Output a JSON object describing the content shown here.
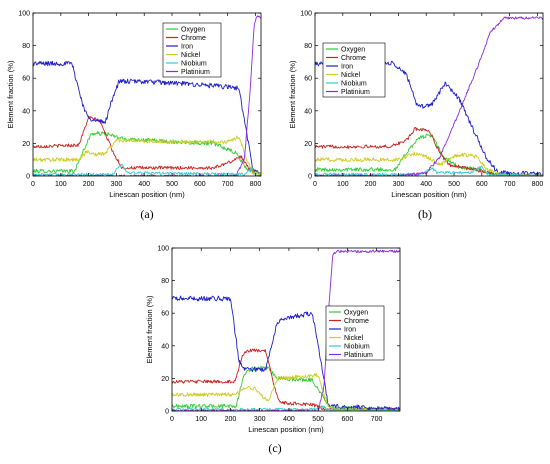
{
  "chart_data": [
    {
      "type": "line",
      "panel_label": "(a)",
      "xlabel": "Linescan position (nm)",
      "ylabel": "Element fraction (%)",
      "xlim": [
        0,
        820
      ],
      "ylim": [
        0,
        100
      ],
      "xticks": [
        0,
        100,
        200,
        300,
        400,
        500,
        600,
        700,
        800
      ],
      "yticks": [
        0,
        20,
        40,
        60,
        80,
        100
      ],
      "legend_position": "top-right",
      "series": [
        {
          "name": "Oxygen",
          "color": "#33cc33",
          "noise": 1.2,
          "points": [
            [
              0,
              3
            ],
            [
              150,
              3
            ],
            [
              185,
              17
            ],
            [
              210,
              26
            ],
            [
              260,
              26
            ],
            [
              320,
              23
            ],
            [
              500,
              21
            ],
            [
              650,
              20
            ],
            [
              730,
              14
            ],
            [
              770,
              4
            ],
            [
              820,
              1
            ]
          ]
        },
        {
          "name": "Chrome",
          "color": "#cc2222",
          "noise": 1.0,
          "points": [
            [
              0,
              18
            ],
            [
              165,
              19
            ],
            [
              200,
              36
            ],
            [
              240,
              34
            ],
            [
              290,
              14
            ],
            [
              320,
              5
            ],
            [
              650,
              5
            ],
            [
              700,
              8
            ],
            [
              750,
              12
            ],
            [
              780,
              4
            ],
            [
              820,
              1
            ]
          ]
        },
        {
          "name": "Iron",
          "color": "#1f1fcc",
          "noise": 1.5,
          "points": [
            [
              0,
              69
            ],
            [
              140,
              69
            ],
            [
              185,
              40
            ],
            [
              215,
              34
            ],
            [
              260,
              33
            ],
            [
              290,
              50
            ],
            [
              310,
              58
            ],
            [
              400,
              58
            ],
            [
              600,
              56
            ],
            [
              740,
              54
            ],
            [
              770,
              25
            ],
            [
              790,
              4
            ],
            [
              820,
              1
            ]
          ]
        },
        {
          "name": "Nickel",
          "color": "#cccc22",
          "noise": 1.2,
          "points": [
            [
              0,
              10
            ],
            [
              160,
              10
            ],
            [
              195,
              15
            ],
            [
              225,
              13
            ],
            [
              260,
              14
            ],
            [
              300,
              22
            ],
            [
              500,
              21
            ],
            [
              700,
              21
            ],
            [
              740,
              24
            ],
            [
              770,
              10
            ],
            [
              790,
              2
            ],
            [
              820,
              1
            ]
          ]
        },
        {
          "name": "Niobium",
          "color": "#33cccc",
          "noise": 0.8,
          "points": [
            [
              0,
              1
            ],
            [
              290,
              1
            ],
            [
              300,
              4
            ],
            [
              320,
              7
            ],
            [
              340,
              2
            ],
            [
              760,
              1
            ],
            [
              790,
              5
            ],
            [
              800,
              0
            ],
            [
              820,
              0
            ]
          ]
        },
        {
          "name": "Platinium",
          "color": "#8a2be2",
          "noise": 0.8,
          "points": [
            [
              0,
              0
            ],
            [
              730,
              0
            ],
            [
              760,
              10
            ],
            [
              780,
              50
            ],
            [
              795,
              92
            ],
            [
              805,
              98
            ],
            [
              820,
              97
            ]
          ]
        }
      ]
    },
    {
      "type": "line",
      "panel_label": "(b)",
      "xlabel": "Linescan position (nm)",
      "ylabel": "Element fraction (%)",
      "xlim": [
        0,
        820
      ],
      "ylim": [
        0,
        100
      ],
      "xticks": [
        0,
        100,
        200,
        300,
        400,
        500,
        600,
        700,
        800
      ],
      "yticks": [
        0,
        20,
        40,
        60,
        80,
        100
      ],
      "legend_position": "left-middle",
      "series": [
        {
          "name": "Oxygen",
          "color": "#33cc33",
          "noise": 1.2,
          "points": [
            [
              0,
              4
            ],
            [
              290,
              4
            ],
            [
              340,
              17
            ],
            [
              380,
              24
            ],
            [
              420,
              25
            ],
            [
              460,
              12
            ],
            [
              520,
              5
            ],
            [
              600,
              4
            ],
            [
              640,
              1
            ],
            [
              820,
              0
            ]
          ]
        },
        {
          "name": "Chrome",
          "color": "#cc2222",
          "noise": 1.0,
          "points": [
            [
              0,
              18
            ],
            [
              270,
              18
            ],
            [
              330,
              22
            ],
            [
              360,
              29
            ],
            [
              410,
              28
            ],
            [
              450,
              14
            ],
            [
              480,
              7
            ],
            [
              600,
              3
            ],
            [
              650,
              1
            ],
            [
              820,
              0
            ]
          ]
        },
        {
          "name": "Iron",
          "color": "#1f1fcc",
          "noise": 1.5,
          "points": [
            [
              0,
              69
            ],
            [
              280,
              69
            ],
            [
              330,
              62
            ],
            [
              370,
              42
            ],
            [
              420,
              44
            ],
            [
              470,
              57
            ],
            [
              520,
              47
            ],
            [
              570,
              28
            ],
            [
              620,
              10
            ],
            [
              660,
              2
            ],
            [
              820,
              1
            ]
          ]
        },
        {
          "name": "Nickel",
          "color": "#cccc22",
          "noise": 1.2,
          "points": [
            [
              0,
              10
            ],
            [
              300,
              10
            ],
            [
              360,
              14
            ],
            [
              410,
              11
            ],
            [
              450,
              7
            ],
            [
              500,
              12
            ],
            [
              540,
              13
            ],
            [
              580,
              12
            ],
            [
              620,
              4
            ],
            [
              660,
              1
            ],
            [
              820,
              0
            ]
          ]
        },
        {
          "name": "Niobium",
          "color": "#33cccc",
          "noise": 0.8,
          "points": [
            [
              0,
              1
            ],
            [
              380,
              1
            ],
            [
              420,
              5
            ],
            [
              440,
              2
            ],
            [
              560,
              2
            ],
            [
              600,
              6
            ],
            [
              620,
              1
            ],
            [
              820,
              0
            ]
          ]
        },
        {
          "name": "Platinium",
          "color": "#8a2be2",
          "noise": 0.8,
          "points": [
            [
              0,
              0
            ],
            [
              300,
              0
            ],
            [
              400,
              2
            ],
            [
              450,
              12
            ],
            [
              520,
              40
            ],
            [
              580,
              65
            ],
            [
              630,
              88
            ],
            [
              680,
              97
            ],
            [
              820,
              97
            ]
          ]
        }
      ]
    },
    {
      "type": "line",
      "panel_label": "(c)",
      "xlabel": "Linescan position (nm)",
      "ylabel": "Element fraction (%)",
      "xlim": [
        0,
        780
      ],
      "ylim": [
        0,
        100
      ],
      "xticks": [
        0,
        100,
        200,
        300,
        400,
        500,
        600,
        700
      ],
      "yticks": [
        0,
        20,
        40,
        60,
        80,
        100
      ],
      "legend_position": "right-middle",
      "series": [
        {
          "name": "Oxygen",
          "color": "#33cc33",
          "noise": 1.2,
          "points": [
            [
              0,
              3
            ],
            [
              220,
              3
            ],
            [
              245,
              22
            ],
            [
              270,
              26
            ],
            [
              330,
              26
            ],
            [
              360,
              20
            ],
            [
              480,
              19
            ],
            [
              520,
              8
            ],
            [
              540,
              2
            ],
            [
              780,
              1
            ]
          ]
        },
        {
          "name": "Chrome",
          "color": "#cc2222",
          "noise": 1.0,
          "points": [
            [
              0,
              18
            ],
            [
              215,
              18
            ],
            [
              240,
              34
            ],
            [
              260,
              37
            ],
            [
              320,
              37
            ],
            [
              350,
              15
            ],
            [
              370,
              5
            ],
            [
              480,
              4
            ],
            [
              520,
              1
            ],
            [
              780,
              1
            ]
          ]
        },
        {
          "name": "Iron",
          "color": "#1f1fcc",
          "noise": 1.5,
          "points": [
            [
              0,
              69
            ],
            [
              200,
              69
            ],
            [
              230,
              30
            ],
            [
              250,
              26
            ],
            [
              320,
              25
            ],
            [
              360,
              55
            ],
            [
              420,
              58
            ],
            [
              480,
              60
            ],
            [
              510,
              30
            ],
            [
              535,
              3
            ],
            [
              780,
              1
            ]
          ]
        },
        {
          "name": "Nickel",
          "color": "#cccc22",
          "noise": 1.2,
          "points": [
            [
              0,
              10
            ],
            [
              220,
              10
            ],
            [
              240,
              14
            ],
            [
              280,
              14
            ],
            [
              330,
              6
            ],
            [
              360,
              20
            ],
            [
              500,
              22
            ],
            [
              530,
              5
            ],
            [
              550,
              1
            ],
            [
              780,
              0
            ]
          ]
        },
        {
          "name": "Niobium",
          "color": "#33cccc",
          "noise": 0.8,
          "points": [
            [
              0,
              1
            ],
            [
              500,
              1
            ],
            [
              515,
              3
            ],
            [
              530,
              1
            ],
            [
              780,
              0
            ]
          ]
        },
        {
          "name": "Platinium",
          "color": "#8a2be2",
          "noise": 0.8,
          "points": [
            [
              0,
              0
            ],
            [
              500,
              0
            ],
            [
              520,
              15
            ],
            [
              535,
              60
            ],
            [
              550,
              96
            ],
            [
              565,
              98
            ],
            [
              780,
              98
            ]
          ]
        }
      ]
    }
  ]
}
